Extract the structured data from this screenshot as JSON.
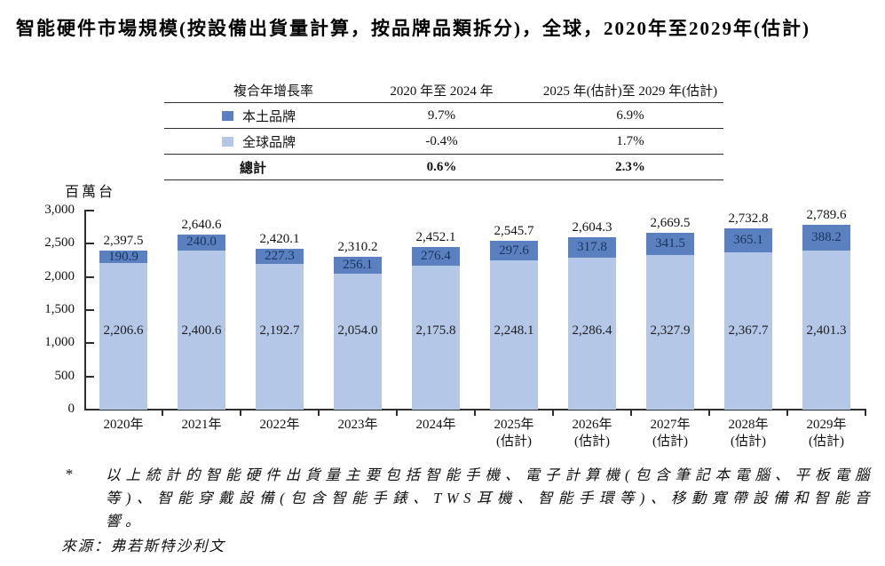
{
  "title": "智能硬件市場規模(按設備出貨量計算，按品牌品類拆分)，全球，2020年至2029年(估計)",
  "cagr_table": {
    "header": {
      "col1": "複合年增長率",
      "col2": "2020 年至 2024 年",
      "col3": "2025 年(估計)至 2029 年(估計)"
    },
    "rows": [
      {
        "label": "本土品牌",
        "col2": "9.7%",
        "col3": "6.9%"
      },
      {
        "label": "全球品牌",
        "col2": "-0.4%",
        "col3": "1.7%"
      }
    ],
    "total": {
      "label": "總計",
      "col2": "0.6%",
      "col3": "2.3%"
    }
  },
  "chart_data": {
    "type": "bar",
    "stacked": true,
    "title": "智能硬件市場規模(按設備出貨量計算，按品牌品類拆分)，全球，2020年至2029年(估計)",
    "ylabel": "百萬台",
    "ylim": [
      0,
      3000
    ],
    "ytick_step": 500,
    "grid": false,
    "legend_position": "table-top",
    "categories": [
      {
        "label": "2020年",
        "sublabel": ""
      },
      {
        "label": "2021年",
        "sublabel": ""
      },
      {
        "label": "2022年",
        "sublabel": ""
      },
      {
        "label": "2023年",
        "sublabel": ""
      },
      {
        "label": "2024年",
        "sublabel": ""
      },
      {
        "label": "2025年",
        "sublabel": "(估計)"
      },
      {
        "label": "2026年",
        "sublabel": "(估計)"
      },
      {
        "label": "2027年",
        "sublabel": "(估計)"
      },
      {
        "label": "2028年",
        "sublabel": "(估計)"
      },
      {
        "label": "2029年",
        "sublabel": "(估計)"
      }
    ],
    "series": [
      {
        "name": "本土品牌",
        "color": "#5b80c0",
        "label_color": "#16355c",
        "values": [
          190.9,
          240.0,
          227.3,
          256.1,
          276.4,
          297.6,
          317.8,
          341.5,
          365.1,
          388.2
        ]
      },
      {
        "name": "全球品牌",
        "color": "#b4c7e7",
        "label_color": "#1d1d1d",
        "values": [
          2206.6,
          2400.6,
          2192.7,
          2054.0,
          2175.8,
          2248.1,
          2286.4,
          2327.9,
          2367.7,
          2401.3
        ]
      }
    ],
    "totals": [
      2397.5,
      2640.6,
      2420.1,
      2310.2,
      2452.1,
      2545.7,
      2604.3,
      2669.5,
      2732.8,
      2789.6
    ]
  },
  "footnote": {
    "marker": "*",
    "text": "以上統計的智能硬件出貨量主要包括智能手機、電子計算機(包含筆記本電腦、平板電腦等)、智能穿戴設備(包含智能手錶、TWS耳機、智能手環等)、移動寬帶設備和智能音響。"
  },
  "source": "來源：弗若斯特沙利文"
}
